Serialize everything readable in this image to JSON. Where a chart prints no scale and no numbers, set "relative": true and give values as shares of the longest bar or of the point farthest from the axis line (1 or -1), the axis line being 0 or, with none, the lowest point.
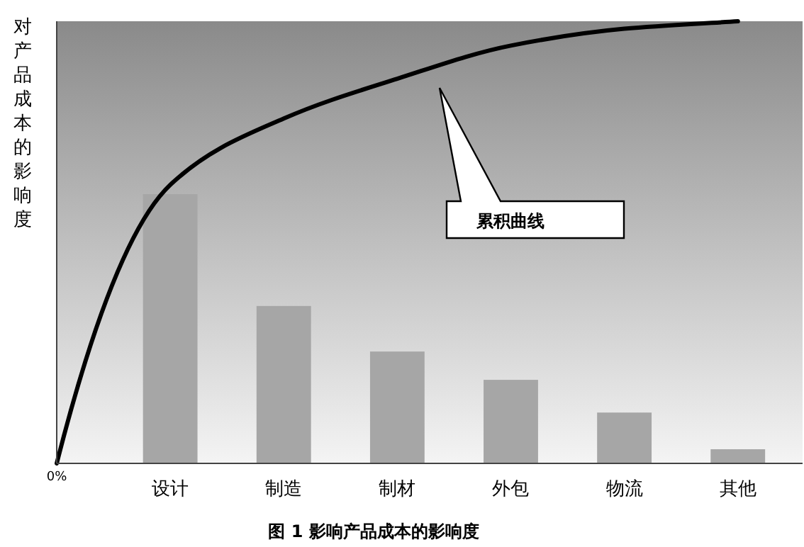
{
  "chart_data": {
    "type": "bar",
    "relative": true,
    "ylabel": "对产品成本的影响度",
    "categories": [
      null,
      "设计",
      "制造",
      "制材",
      "外包",
      "物流",
      "其他"
    ],
    "series": [
      {
        "color": "#a6a6a6",
        "values": [
          null,
          0.609,
          0.356,
          0.253,
          0.189,
          0.115,
          0.032
        ]
      },
      {
        "type": "line",
        "color": "#000000",
        "values": [
          0,
          0.63,
          0.78,
          0.87,
          0.945,
          0.983,
          1
        ]
      }
    ],
    "annotations": [
      "0%",
      "累积曲线",
      "图 1 影响产品成本的影响度"
    ],
    "grid": false
  }
}
